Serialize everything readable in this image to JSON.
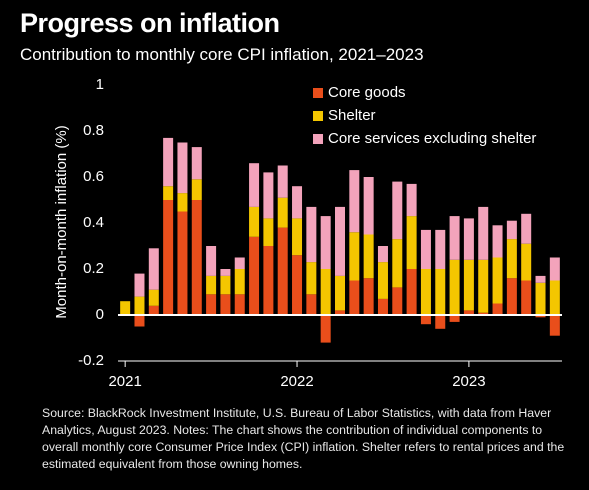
{
  "chart_data": {
    "type": "stacked_bar",
    "title": "Progress on inflation",
    "subtitle": "Contribution to monthly core CPI inflation, 2021–2023",
    "y_label": "Month-on-month inflation (%)",
    "categories": [
      "2021",
      null,
      null,
      null,
      null,
      null,
      null,
      null,
      null,
      null,
      null,
      null,
      "2022",
      null,
      null,
      null,
      null,
      null,
      null,
      null,
      null,
      null,
      null,
      null,
      "2023",
      null,
      null,
      null,
      null,
      null,
      null
    ],
    "series": [
      {
        "name": "Core goods",
        "color": "#e94e1b",
        "values": [
          0,
          -0.05,
          0.04,
          0.5,
          0.45,
          0.5,
          0.09,
          0.09,
          0.09,
          0.34,
          0.3,
          0.38,
          0.26,
          0.09,
          -0.12,
          0.02,
          0.15,
          0.16,
          0.07,
          0.12,
          0.2,
          -0.04,
          -0.06,
          -0.03,
          0.02,
          0.01,
          0.05,
          0.16,
          0.15,
          -0.01,
          -0.09
        ]
      },
      {
        "name": "Shelter",
        "color": "#f4c600",
        "values": [
          0.06,
          0.08,
          0.07,
          0.06,
          0.08,
          0.09,
          0.08,
          0.08,
          0.11,
          0.13,
          0.12,
          0.13,
          0.16,
          0.14,
          0.2,
          0.15,
          0.21,
          0.19,
          0.16,
          0.21,
          0.23,
          0.2,
          0.2,
          0.24,
          0.22,
          0.23,
          0.2,
          0.17,
          0.16,
          0.14,
          0.15
        ]
      },
      {
        "name": "Core services excluding shelter",
        "color": "#f3a3bb",
        "values": [
          0,
          0.1,
          0.18,
          0.21,
          0.22,
          0.14,
          0.13,
          0.03,
          0.05,
          0.19,
          0.2,
          0.14,
          0.14,
          0.24,
          0.23,
          0.3,
          0.27,
          0.25,
          0.07,
          0.25,
          0.14,
          0.17,
          0.17,
          0.19,
          0.18,
          0.23,
          0.14,
          0.08,
          0.13,
          0.03,
          0.1
        ]
      }
    ],
    "ylim": [
      -0.2,
      1
    ],
    "yticks": [
      -0.2,
      0,
      0.2,
      0.4,
      0.6,
      0.8,
      1
    ],
    "grid": false,
    "legend": "top-right"
  },
  "source": "Source: BlackRock Investment Institute, U.S. Bureau of Labor Statistics, with data from Haver Analytics, August 2023. Notes: The chart shows the contribution of individual components to overall monthly core Consumer Price Index (CPI) inflation. Shelter refers to rental prices and the estimated equivalent from those owning homes."
}
